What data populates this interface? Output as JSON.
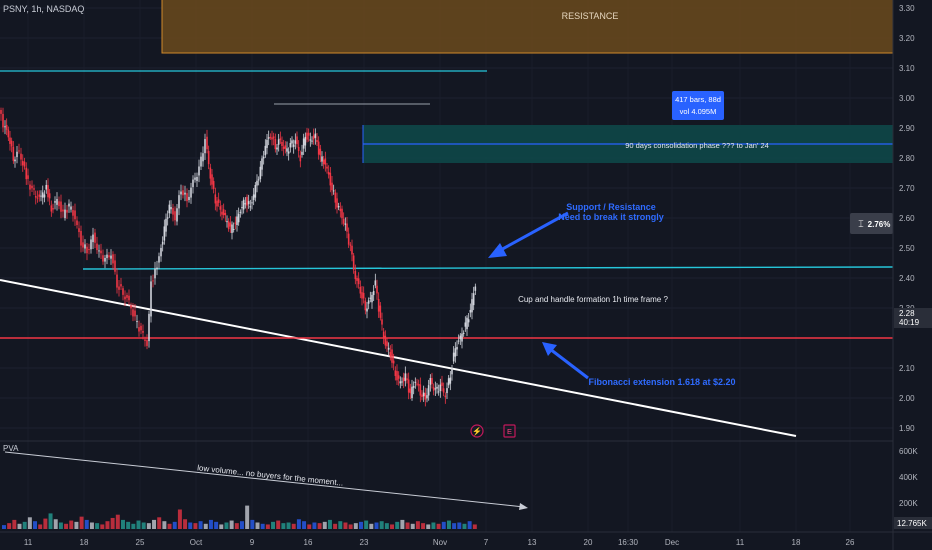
{
  "header": {
    "symbol_line": "PSNY, 1h, NASDAQ"
  },
  "volume_indicator": {
    "label": "PVA",
    "last_value": "12.765K"
  },
  "chart_data": {
    "type": "candlestick",
    "symbol": "PSNY",
    "timeframe": "1h",
    "exchange": "NASDAQ",
    "price_axis": {
      "range": [
        1.85,
        3.33
      ],
      "ticks": [
        "3.30",
        "3.20",
        "3.10",
        "3.00",
        "2.90",
        "2.80",
        "2.70",
        "2.60",
        "2.50",
        "2.40",
        "2.30",
        "2.20",
        "2.10",
        "2.00",
        "1.90"
      ],
      "current_price": "2.28",
      "countdown": "40:19"
    },
    "volume_axis": {
      "ticks": [
        "600K",
        "400K",
        "200K"
      ],
      "last": "12.765K"
    },
    "time_axis": [
      "11",
      "18",
      "25",
      "Oct",
      "9",
      "16",
      "23",
      "Nov",
      "7",
      "13",
      "20",
      "16:30",
      "Dec",
      "11",
      "18",
      "26"
    ],
    "price_path": [
      [
        0,
        2.96
      ],
      [
        4,
        2.91
      ],
      [
        9,
        2.88
      ],
      [
        14,
        2.8
      ],
      [
        20,
        2.82
      ],
      [
        27,
        2.74
      ],
      [
        33,
        2.69
      ],
      [
        40,
        2.66
      ],
      [
        47,
        2.7
      ],
      [
        52,
        2.63
      ],
      [
        58,
        2.66
      ],
      [
        64,
        2.61
      ],
      [
        70,
        2.64
      ],
      [
        76,
        2.6
      ],
      [
        82,
        2.52
      ],
      [
        88,
        2.49
      ],
      [
        94,
        2.54
      ],
      [
        100,
        2.48
      ],
      [
        106,
        2.46
      ],
      [
        112,
        2.48
      ],
      [
        118,
        2.38
      ],
      [
        124,
        2.35
      ],
      [
        130,
        2.32
      ],
      [
        136,
        2.26
      ],
      [
        142,
        2.22
      ],
      [
        148,
        2.18
      ],
      [
        152,
        2.38
      ],
      [
        156,
        2.42
      ],
      [
        160,
        2.47
      ],
      [
        165,
        2.56
      ],
      [
        170,
        2.64
      ],
      [
        176,
        2.6
      ],
      [
        182,
        2.7
      ],
      [
        188,
        2.66
      ],
      [
        194,
        2.72
      ],
      [
        200,
        2.76
      ],
      [
        206,
        2.86
      ],
      [
        211,
        2.74
      ],
      [
        216,
        2.66
      ],
      [
        221,
        2.63
      ],
      [
        226,
        2.6
      ],
      [
        231,
        2.56
      ],
      [
        236,
        2.58
      ],
      [
        241,
        2.63
      ],
      [
        246,
        2.66
      ],
      [
        251,
        2.64
      ],
      [
        256,
        2.7
      ],
      [
        261,
        2.76
      ],
      [
        266,
        2.84
      ],
      [
        271,
        2.88
      ],
      [
        276,
        2.84
      ],
      [
        281,
        2.86
      ],
      [
        286,
        2.82
      ],
      [
        291,
        2.84
      ],
      [
        296,
        2.86
      ],
      [
        301,
        2.8
      ],
      [
        306,
        2.88
      ],
      [
        311,
        2.86
      ],
      [
        316,
        2.87
      ],
      [
        321,
        2.8
      ],
      [
        326,
        2.78
      ],
      [
        331,
        2.72
      ],
      [
        336,
        2.66
      ],
      [
        341,
        2.62
      ],
      [
        346,
        2.57
      ],
      [
        351,
        2.5
      ],
      [
        356,
        2.4
      ],
      [
        361,
        2.36
      ],
      [
        366,
        2.3
      ],
      [
        371,
        2.33
      ],
      [
        376,
        2.38
      ],
      [
        381,
        2.26
      ],
      [
        386,
        2.18
      ],
      [
        391,
        2.15
      ],
      [
        396,
        2.08
      ],
      [
        401,
        2.05
      ],
      [
        406,
        2.07
      ],
      [
        411,
        2.01
      ],
      [
        416,
        2.06
      ],
      [
        421,
        2.02
      ],
      [
        426,
        2.0
      ],
      [
        431,
        2.06
      ],
      [
        436,
        2.02
      ],
      [
        441,
        2.04
      ],
      [
        446,
        2.01
      ],
      [
        451,
        2.08
      ],
      [
        456,
        2.17
      ],
      [
        461,
        2.2
      ],
      [
        466,
        2.24
      ],
      [
        471,
        2.29
      ],
      [
        476,
        2.38
      ]
    ],
    "volume_bars_K": [
      30,
      45,
      70,
      40,
      55,
      90,
      60,
      35,
      80,
      120,
      75,
      50,
      40,
      65,
      55,
      95,
      70,
      50,
      45,
      35,
      60,
      85,
      110,
      70,
      55,
      40,
      65,
      50,
      45,
      70,
      90,
      60,
      40,
      55,
      150,
      75,
      50,
      45,
      60,
      40,
      70,
      55,
      35,
      50,
      65,
      45,
      60,
      180,
      70,
      50,
      40,
      35,
      55,
      65,
      45,
      50,
      40,
      75,
      60,
      35,
      50,
      45,
      55,
      70,
      40,
      60,
      50,
      35,
      45,
      55,
      65,
      40,
      50,
      60,
      45,
      35,
      55,
      70,
      50,
      40,
      60,
      45,
      35,
      50,
      40,
      55,
      65,
      45,
      50,
      40,
      60,
      35
    ],
    "drawings": {
      "resistance_zone": {
        "label": "RESISTANCE",
        "price_range": [
          3.15,
          3.33
        ]
      },
      "consolidation_box": {
        "label": "90 days consolidation phase ??? to Jan' 24",
        "price_range": [
          2.78,
          2.91
        ],
        "mid_price": 2.84
      },
      "measure_label": {
        "line1": "417 bars, 88d",
        "line2": "vol 4.095M"
      },
      "support_resistance_line": {
        "price": 2.43
      },
      "fibonacci_line": {
        "price": 2.2
      },
      "upper_cyan_line": {
        "price": 3.09
      },
      "gray_line": {
        "price": 2.98
      },
      "percent_badge": "2.76%",
      "annotations": [
        {
          "text": "Support / Resistance"
        },
        {
          "text": "Need to break it strongly"
        },
        {
          "text": "Cup and handle formation 1h time frame ?"
        },
        {
          "text": "Fibonacci extension 1.618 at $2.20"
        },
        {
          "text": "low volume... no buyers for the moment..."
        }
      ],
      "event_badges": [
        "⚡",
        "E"
      ]
    },
    "colors": {
      "background": "#131722",
      "up": "#d1d4dc",
      "down": "#f23645",
      "cyan_line": "#26c6da",
      "fib_line": "#f23645",
      "trendline": "#ffffff",
      "arrow_blue": "#2962ff",
      "resistance_fill": "#6b4a1c",
      "consolidation_fill": "#0e4a4a"
    }
  }
}
